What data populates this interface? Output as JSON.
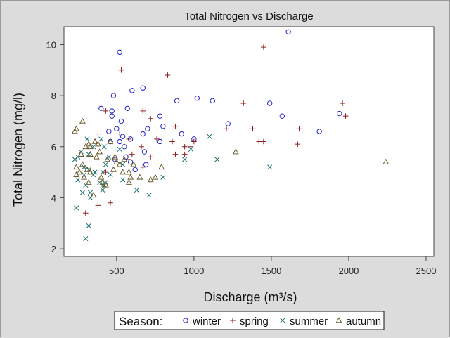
{
  "chart_data": {
    "type": "scatter",
    "title": "Total Nitrogen vs Discharge",
    "xlabel": "Discharge (m³/s)",
    "ylabel": "Total Nitrogen (mg/l)",
    "xlim": [
      160,
      2550
    ],
    "ylim": [
      1.7,
      10.7
    ],
    "xticks": [
      500,
      1000,
      1500,
      2000,
      2500
    ],
    "yticks": [
      2,
      4,
      6,
      8,
      10
    ],
    "grid": false,
    "legend": {
      "title": "Season:",
      "placement": "bottom-center"
    },
    "series": [
      {
        "name": "winter",
        "marker": "circle",
        "color": "#2222cc",
        "points": [
          [
            1610,
            10.5
          ],
          [
            520,
            9.7
          ],
          [
            600,
            8.2
          ],
          [
            670,
            8.3
          ],
          [
            480,
            8.0
          ],
          [
            1020,
            7.9
          ],
          [
            1120,
            7.8
          ],
          [
            890,
            7.8
          ],
          [
            1490,
            7.7
          ],
          [
            400,
            7.5
          ],
          [
            570,
            7.5
          ],
          [
            470,
            7.4
          ],
          [
            470,
            7.2
          ],
          [
            780,
            7.2
          ],
          [
            1570,
            7.2
          ],
          [
            1940,
            7.3
          ],
          [
            530,
            7.0
          ],
          [
            1220,
            6.9
          ],
          [
            800,
            6.8
          ],
          [
            500,
            6.7
          ],
          [
            450,
            6.6
          ],
          [
            700,
            6.7
          ],
          [
            1810,
            6.6
          ],
          [
            670,
            6.5
          ],
          [
            920,
            6.5
          ],
          [
            540,
            6.4
          ],
          [
            590,
            6.3
          ],
          [
            460,
            6.2
          ],
          [
            520,
            6.2
          ],
          [
            780,
            6.2
          ],
          [
            1000,
            6.3
          ],
          [
            550,
            6.0
          ],
          [
            680,
            5.8
          ],
          [
            490,
            5.5
          ],
          [
            560,
            5.6
          ],
          [
            590,
            5.4
          ],
          [
            690,
            5.3
          ],
          [
            620,
            5.1
          ]
        ]
      },
      {
        "name": "spring",
        "marker": "plus",
        "color": "#8b1a1a",
        "points": [
          [
            1450,
            9.9
          ],
          [
            530,
            9.0
          ],
          [
            830,
            8.8
          ],
          [
            1960,
            7.7
          ],
          [
            1320,
            7.7
          ],
          [
            1980,
            7.2
          ],
          [
            430,
            7.4
          ],
          [
            670,
            7.4
          ],
          [
            720,
            7.1
          ],
          [
            880,
            6.8
          ],
          [
            1210,
            6.7
          ],
          [
            1380,
            6.7
          ],
          [
            1680,
            6.7
          ],
          [
            380,
            6.5
          ],
          [
            520,
            6.5
          ],
          [
            580,
            6.3
          ],
          [
            660,
            6.0
          ],
          [
            760,
            6.3
          ],
          [
            860,
            6.2
          ],
          [
            1000,
            6.2
          ],
          [
            1420,
            6.2
          ],
          [
            1450,
            6.2
          ],
          [
            940,
            6.0
          ],
          [
            980,
            6.0
          ],
          [
            1670,
            6.1
          ],
          [
            600,
            5.7
          ],
          [
            720,
            5.6
          ],
          [
            880,
            5.7
          ],
          [
            940,
            5.7
          ],
          [
            580,
            5.5
          ],
          [
            670,
            5.2
          ],
          [
            430,
            5.0
          ],
          [
            380,
            3.7
          ],
          [
            460,
            3.8
          ],
          [
            300,
            3.4
          ]
        ]
      },
      {
        "name": "summer",
        "marker": "x",
        "color": "#1a7070",
        "points": [
          [
            1100,
            6.4
          ],
          [
            310,
            6.3
          ],
          [
            400,
            6.3
          ],
          [
            350,
            6.0
          ],
          [
            420,
            6.0
          ],
          [
            980,
            5.9
          ],
          [
            270,
            5.8
          ],
          [
            520,
            5.9
          ],
          [
            320,
            5.7
          ],
          [
            450,
            5.6
          ],
          [
            230,
            5.5
          ],
          [
            250,
            5.6
          ],
          [
            940,
            5.5
          ],
          [
            1150,
            5.5
          ],
          [
            430,
            5.3
          ],
          [
            540,
            5.3
          ],
          [
            290,
            5.2
          ],
          [
            320,
            5.1
          ],
          [
            360,
            5.0
          ],
          [
            410,
            5.0
          ],
          [
            290,
            4.9
          ],
          [
            350,
            4.9
          ],
          [
            460,
            4.9
          ],
          [
            800,
            4.8
          ],
          [
            250,
            4.7
          ],
          [
            390,
            4.6
          ],
          [
            430,
            4.6
          ],
          [
            540,
            4.7
          ],
          [
            300,
            4.5
          ],
          [
            410,
            4.5
          ],
          [
            420,
            4.5
          ],
          [
            630,
            4.3
          ],
          [
            280,
            4.2
          ],
          [
            330,
            4.2
          ],
          [
            410,
            4.3
          ],
          [
            330,
            4.0
          ],
          [
            710,
            4.1
          ],
          [
            1490,
            5.2
          ],
          [
            240,
            3.6
          ],
          [
            320,
            2.9
          ],
          [
            300,
            2.4
          ]
        ]
      },
      {
        "name": "autumn",
        "marker": "triangle",
        "color": "#6b5a2a",
        "points": [
          [
            280,
            7.0
          ],
          [
            240,
            6.7
          ],
          [
            230,
            6.6
          ],
          [
            300,
            6.0
          ],
          [
            320,
            6.1
          ],
          [
            360,
            6.2
          ],
          [
            380,
            6.1
          ],
          [
            330,
            6.0
          ],
          [
            390,
            5.8
          ],
          [
            330,
            5.7
          ],
          [
            270,
            5.7
          ],
          [
            370,
            5.6
          ],
          [
            460,
            6.2
          ],
          [
            440,
            5.5
          ],
          [
            490,
            5.6
          ],
          [
            550,
            5.5
          ],
          [
            500,
            5.4
          ],
          [
            520,
            5.3
          ],
          [
            280,
            5.3
          ],
          [
            240,
            5.2
          ],
          [
            790,
            5.2
          ],
          [
            310,
            5.1
          ],
          [
            260,
            5.0
          ],
          [
            240,
            4.9
          ],
          [
            330,
            5.0
          ],
          [
            480,
            5.1
          ],
          [
            540,
            5.0
          ],
          [
            580,
            5.0
          ],
          [
            610,
            5.3
          ],
          [
            290,
            4.8
          ],
          [
            400,
            4.8
          ],
          [
            590,
            4.8
          ],
          [
            650,
            4.8
          ],
          [
            320,
            4.6
          ],
          [
            410,
            4.6
          ],
          [
            430,
            4.5
          ],
          [
            580,
            4.6
          ],
          [
            720,
            4.7
          ],
          [
            750,
            4.8
          ],
          [
            1270,
            5.8
          ],
          [
            2240,
            5.4
          ],
          [
            350,
            4.1
          ]
        ]
      }
    ]
  }
}
